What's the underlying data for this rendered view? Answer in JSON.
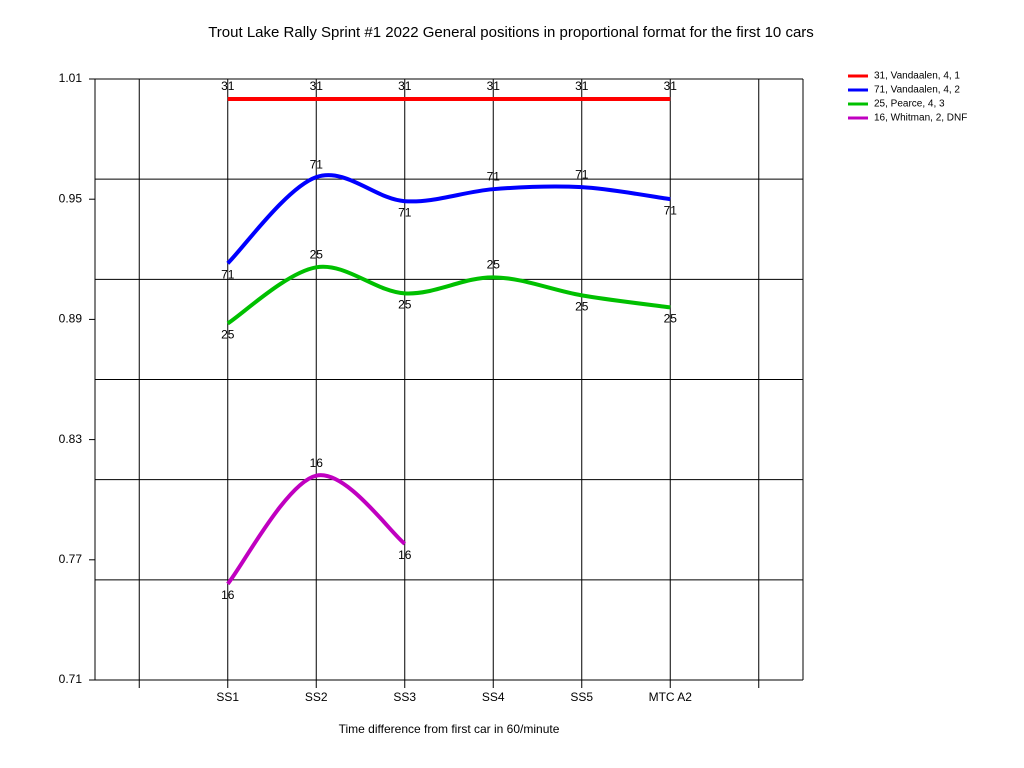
{
  "chart_data": {
    "type": "line",
    "title": "Trout Lake Rally Sprint #1 2022  General positions in proportional format for the first 10 cars",
    "x_label": "Time difference from first car in 60/minute",
    "categories": [
      null,
      "SS1",
      "SS2",
      "SS3",
      "SS4",
      "SS5",
      "MTC A2",
      null
    ],
    "ylim": [
      0.71,
      1.01
    ],
    "yticks": [
      0.71,
      0.77,
      0.83,
      0.89,
      0.95,
      1.01
    ],
    "ygrid": [
      0.71,
      0.76,
      0.81,
      0.86,
      0.91,
      0.96,
      1.01
    ],
    "smooth": true,
    "legend": "top-right",
    "series": [
      {
        "name": "31, Vandaalen, 4, 1",
        "label": "31",
        "color": "#ff0000",
        "values": [
          null,
          1.0,
          1.0,
          1.0,
          1.0,
          1.0,
          1.0,
          null
        ]
      },
      {
        "name": "71, Vandaalen, 4, 2",
        "label": "71",
        "color": "#0000ff",
        "values": [
          null,
          0.918,
          0.961,
          0.949,
          0.955,
          0.956,
          0.95,
          null
        ]
      },
      {
        "name": "25, Pearce, 4, 3",
        "label": "25",
        "color": "#00c000",
        "values": [
          null,
          0.888,
          0.916,
          0.903,
          0.911,
          0.902,
          0.896,
          null
        ]
      },
      {
        "name": "16, Whitman, 2, DNF",
        "label": "16",
        "color": "#c000c0",
        "values": [
          null,
          0.758,
          0.812,
          0.778,
          null,
          null,
          null,
          null
        ]
      }
    ]
  }
}
